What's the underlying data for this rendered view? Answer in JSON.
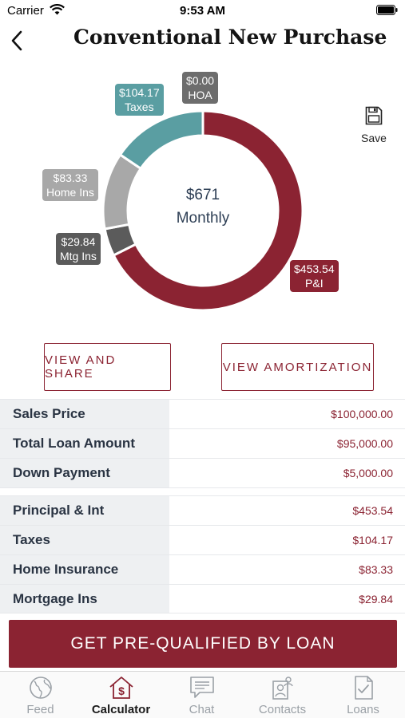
{
  "status_bar": {
    "carrier": "Carrier",
    "time": "9:53 AM"
  },
  "nav": {
    "title": "Conventional New Purchase"
  },
  "save": {
    "label": "Save",
    "icon": "floppy-disk-icon"
  },
  "chart_data": {
    "type": "pie",
    "center_amount": "$671",
    "center_label": "Monthly",
    "slices": [
      {
        "label": "P&I",
        "value_label": "$453.54",
        "value": 453.54,
        "color": "#8b2332"
      },
      {
        "label": "Mtg Ins",
        "value_label": "$29.84",
        "value": 29.84,
        "color": "#5b5b5b"
      },
      {
        "label": "Home Ins",
        "value_label": "$83.33",
        "value": 83.33,
        "color": "#a8a8a8"
      },
      {
        "label": "Taxes",
        "value_label": "$104.17",
        "value": 104.17,
        "color": "#5a9ea2"
      },
      {
        "label": "HOA",
        "value_label": "$0.00",
        "value": 0,
        "color": "#6d6d6d"
      }
    ]
  },
  "buttons": {
    "view_share": "VIEW AND SHARE",
    "view_amortization": "VIEW AMORTIZATION",
    "prequalify": "GET PRE-QUALIFIED BY LOAN"
  },
  "loan_rows": [
    {
      "label": "Sales Price",
      "value": "$100,000.00"
    },
    {
      "label": "Total Loan Amount",
      "value": "$95,000.00"
    },
    {
      "label": "Down Payment",
      "value": "$5,000.00"
    }
  ],
  "payment_rows": [
    {
      "label": "Principal & Int",
      "value": "$453.54"
    },
    {
      "label": "Taxes",
      "value": "$104.17"
    },
    {
      "label": "Home Insurance",
      "value": "$83.33"
    },
    {
      "label": "Mortgage Ins",
      "value": "$29.84"
    }
  ],
  "tabs": [
    {
      "label": "Feed",
      "icon": "globe-icon",
      "active": false
    },
    {
      "label": "Calculator",
      "icon": "house-dollar-icon",
      "active": true
    },
    {
      "label": "Chat",
      "icon": "chat-bubble-icon",
      "active": false
    },
    {
      "label": "Contacts",
      "icon": "contacts-icon",
      "active": false
    },
    {
      "label": "Loans",
      "icon": "document-check-icon",
      "active": false
    }
  ],
  "colors": {
    "accent": "#8b2332",
    "label_bg": "#eef0f2",
    "tab_inactive": "#9aa0a6"
  }
}
